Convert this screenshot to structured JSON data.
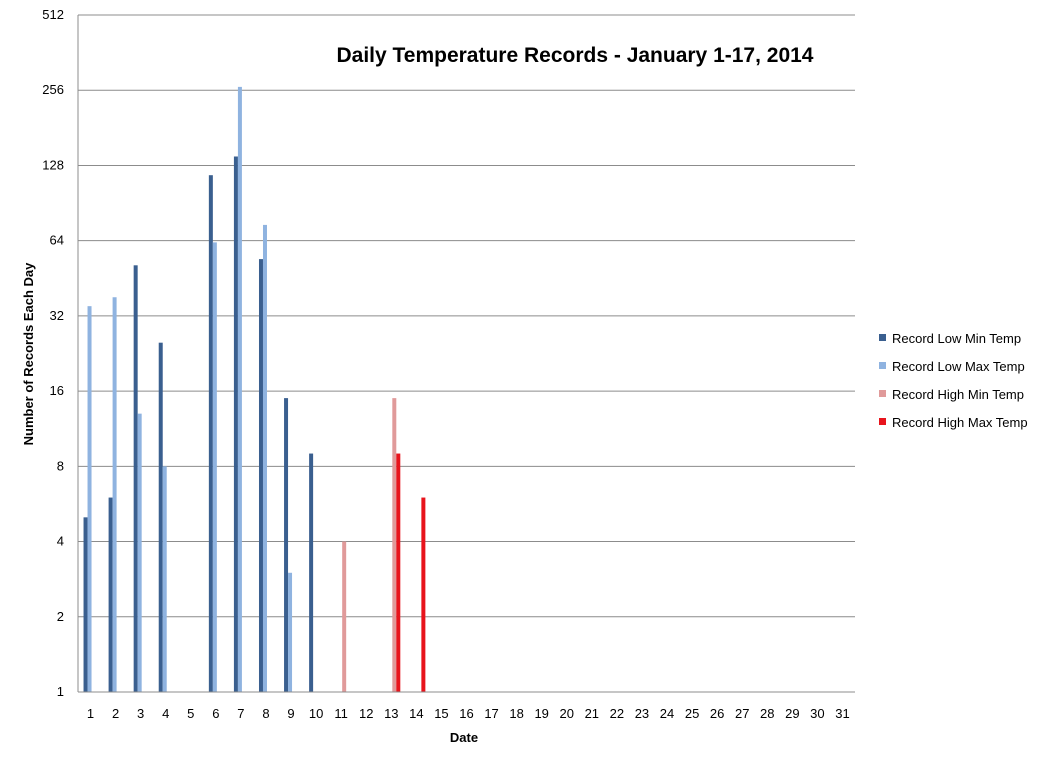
{
  "chart_data": {
    "type": "bar",
    "title": "Daily Temperature Records - January 1-17, 2014",
    "xlabel": "Date",
    "ylabel": "Number of Records Each  Day",
    "y_scale": "log2",
    "ylim": [
      1,
      512
    ],
    "y_ticks": [
      1,
      2,
      4,
      8,
      16,
      32,
      64,
      128,
      256,
      512
    ],
    "grid": true,
    "legend_position": "right",
    "categories": [
      "1",
      "2",
      "3",
      "4",
      "5",
      "6",
      "7",
      "8",
      "9",
      "10",
      "11",
      "12",
      "13",
      "14",
      "15",
      "16",
      "17",
      "18",
      "19",
      "20",
      "21",
      "22",
      "23",
      "24",
      "25",
      "26",
      "27",
      "28",
      "29",
      "30",
      "31"
    ],
    "series": [
      {
        "name": "Record Low Min Temp",
        "color": "#3A5F8F",
        "values": [
          5,
          6,
          51,
          25,
          null,
          117,
          139,
          54,
          15,
          9,
          null,
          null,
          null,
          null,
          null,
          null,
          null,
          null,
          null,
          null,
          null,
          null,
          null,
          null,
          null,
          null,
          null,
          null,
          null,
          null,
          null
        ]
      },
      {
        "name": "Record Low Max Temp",
        "color": "#8FB3E0",
        "values": [
          35,
          38,
          13,
          8,
          null,
          63,
          264,
          74,
          3,
          null,
          null,
          null,
          null,
          null,
          null,
          null,
          null,
          null,
          null,
          null,
          null,
          null,
          null,
          null,
          null,
          null,
          null,
          null,
          null,
          null,
          null
        ]
      },
      {
        "name": "Record High Min Temp",
        "color": "#E09A9A",
        "values": [
          null,
          null,
          null,
          null,
          null,
          null,
          null,
          null,
          null,
          null,
          4,
          null,
          15,
          null,
          null,
          null,
          null,
          null,
          null,
          null,
          null,
          null,
          null,
          null,
          null,
          null,
          null,
          null,
          null,
          null,
          null
        ]
      },
      {
        "name": "Record High Max Temp",
        "color": "#E8141C",
        "values": [
          null,
          null,
          null,
          null,
          null,
          null,
          null,
          null,
          null,
          null,
          null,
          null,
          9,
          6,
          null,
          null,
          null,
          null,
          null,
          null,
          null,
          null,
          null,
          null,
          null,
          null,
          null,
          null,
          null,
          null,
          null
        ]
      }
    ]
  }
}
